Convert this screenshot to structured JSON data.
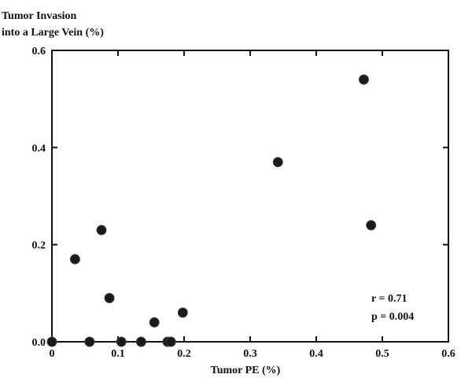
{
  "chart_data": {
    "type": "scatter",
    "title": "",
    "ylabel_lines": [
      "Tumor Invasion",
      "into a Large Vein (%)"
    ],
    "xlabel": "Tumor PE (%)",
    "xlim": [
      0,
      0.6
    ],
    "ylim": [
      0,
      0.6
    ],
    "x_ticks": [
      "0",
      "0.1",
      "0.2",
      "0.3",
      "0.4",
      "0.5",
      "0.6"
    ],
    "y_ticks": [
      "0.0",
      "0.2",
      "0.4",
      "0.6"
    ],
    "grid": false,
    "points": [
      {
        "x": 0.0,
        "y": 0.0
      },
      {
        "x": 0.035,
        "y": 0.17
      },
      {
        "x": 0.057,
        "y": 0.0
      },
      {
        "x": 0.075,
        "y": 0.23
      },
      {
        "x": 0.087,
        "y": 0.09
      },
      {
        "x": 0.105,
        "y": 0.0
      },
      {
        "x": 0.135,
        "y": 0.0
      },
      {
        "x": 0.155,
        "y": 0.04
      },
      {
        "x": 0.175,
        "y": 0.0
      },
      {
        "x": 0.18,
        "y": 0.0
      },
      {
        "x": 0.198,
        "y": 0.06
      },
      {
        "x": 0.342,
        "y": 0.37
      },
      {
        "x": 0.472,
        "y": 0.54
      },
      {
        "x": 0.483,
        "y": 0.24
      }
    ],
    "annotations": [
      "r = 0.71",
      "p = 0.004"
    ]
  }
}
